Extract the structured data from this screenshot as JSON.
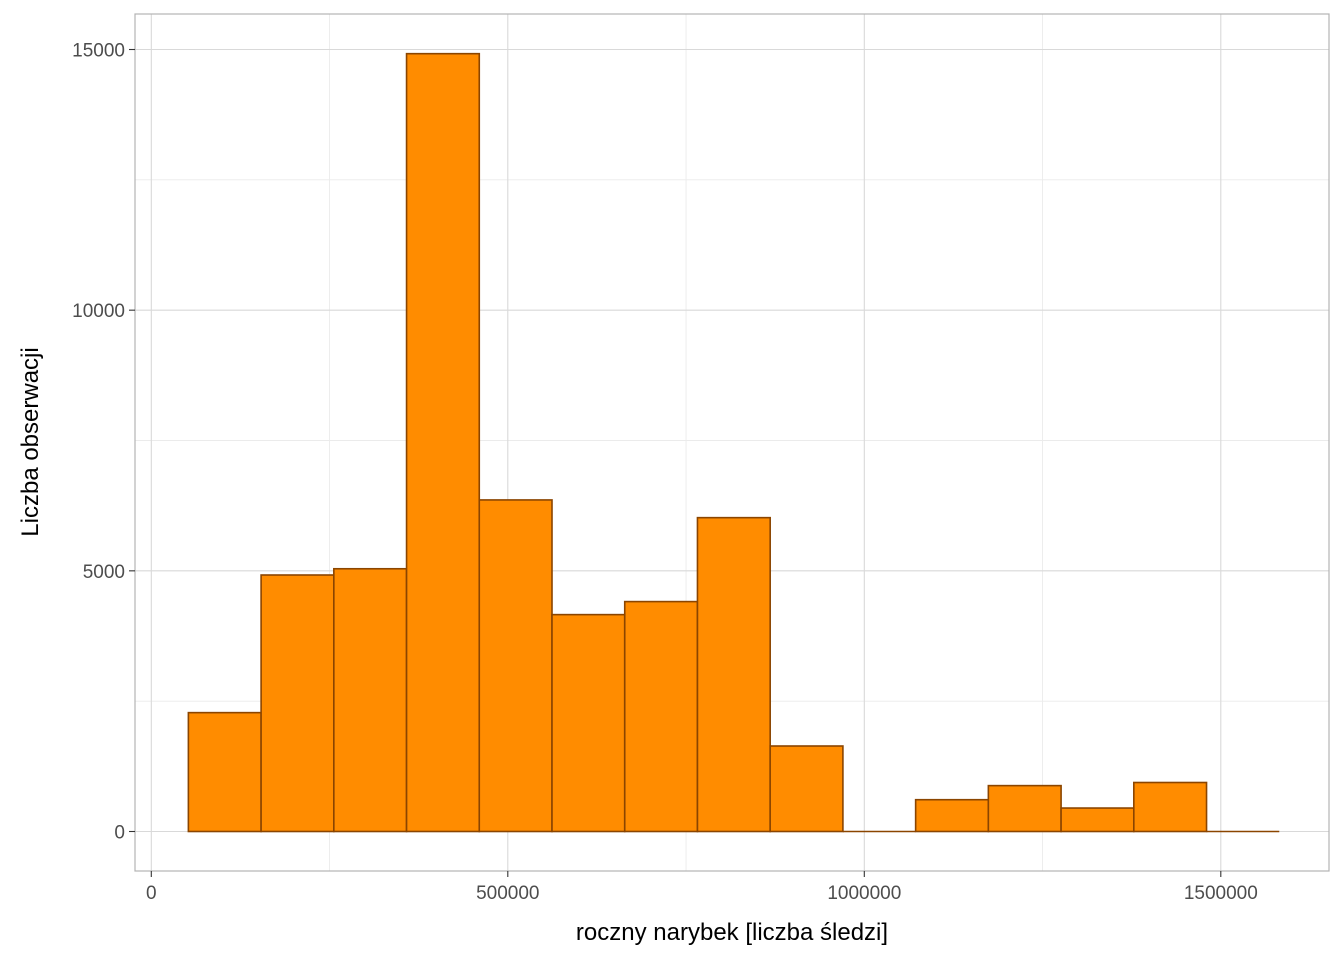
{
  "chart_data": {
    "type": "bar",
    "subtype": "histogram",
    "title": "",
    "xlabel": "roczny narybek [liczba śledzi]",
    "ylabel": "Liczba obserwacji",
    "xlim": [
      0,
      1650000
    ],
    "ylim": [
      0,
      15500
    ],
    "x_ticks": [
      0,
      500000,
      1000000,
      1500000
    ],
    "x_tick_labels": [
      "0",
      "500000",
      "1000000",
      "1500000"
    ],
    "y_ticks": [
      0,
      5000,
      10000,
      15000
    ],
    "y_tick_labels": [
      "0",
      "5000",
      "10000",
      "15000"
    ],
    "grid": true,
    "legend": "none",
    "bins": [
      {
        "x0": 52000,
        "x1": 154000,
        "count": 2280
      },
      {
        "x0": 154000,
        "x1": 256000,
        "count": 4920
      },
      {
        "x0": 256000,
        "x1": 358000,
        "count": 5040
      },
      {
        "x0": 358000,
        "x1": 460000,
        "count": 14920
      },
      {
        "x0": 460000,
        "x1": 562000,
        "count": 6360
      },
      {
        "x0": 562000,
        "x1": 664000,
        "count": 4160
      },
      {
        "x0": 664000,
        "x1": 766000,
        "count": 4410
      },
      {
        "x0": 766000,
        "x1": 868000,
        "count": 6020
      },
      {
        "x0": 868000,
        "x1": 970000,
        "count": 1640
      },
      {
        "x0": 970000,
        "x1": 1072000,
        "count": 0
      },
      {
        "x0": 1072000,
        "x1": 1174000,
        "count": 610
      },
      {
        "x0": 1174000,
        "x1": 1276000,
        "count": 880
      },
      {
        "x0": 1276000,
        "x1": 1378000,
        "count": 450
      },
      {
        "x0": 1378000,
        "x1": 1480000,
        "count": 940
      },
      {
        "x0": 1480000,
        "x1": 1582000,
        "count": 0
      }
    ],
    "colors": {
      "bar_fill": "#FF8C00",
      "bar_stroke": "#8B4500",
      "grid_major": "#d9d9d9",
      "grid_minor": "#ebebeb",
      "panel_border": "#b3b3b3",
      "tick_text": "#4d4d4d",
      "axis_title_text": "#000000"
    }
  }
}
